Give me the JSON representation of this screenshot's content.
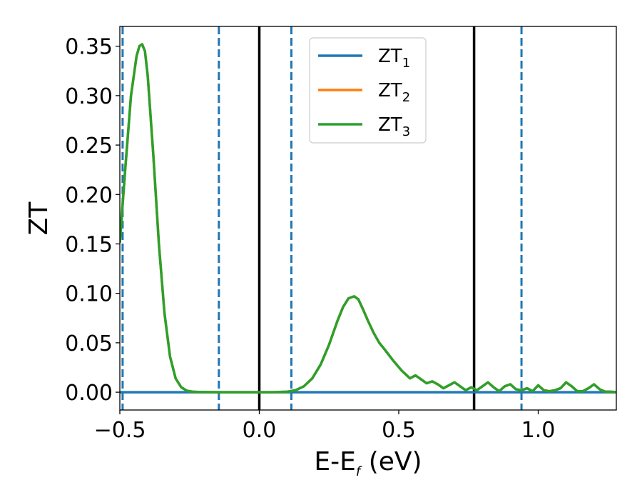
{
  "chart_data": {
    "type": "line",
    "xlabel": {
      "main": "E-E",
      "sub": "f",
      "unit": " (eV)"
    },
    "ylabel": "ZT",
    "xlim": [
      -0.5,
      1.28
    ],
    "ylim": [
      -0.018,
      0.37
    ],
    "xticks": [
      -0.5,
      0.0,
      0.5,
      1.0
    ],
    "xtick_labels": [
      "−0.5",
      "0.0",
      "0.5",
      "1.0"
    ],
    "yticks": [
      0.0,
      0.05,
      0.1,
      0.15,
      0.2,
      0.25,
      0.3,
      0.35
    ],
    "ytick_labels": [
      "0.00",
      "0.05",
      "0.10",
      "0.15",
      "0.20",
      "0.25",
      "0.30",
      "0.35"
    ],
    "legend": {
      "placement": "upper-center"
    },
    "series": [
      {
        "name": "ZT",
        "name_sub": "1",
        "color": "#1f77b4",
        "x": [
          -0.5,
          1.28
        ],
        "y": [
          0.0,
          0.0
        ]
      },
      {
        "name": "ZT",
        "name_sub": "2",
        "color": "#ff7f0e",
        "x": [
          -0.5,
          -0.48,
          -0.46,
          -0.44,
          -0.43,
          -0.42,
          -0.41,
          -0.4,
          -0.38,
          -0.36,
          -0.34,
          -0.32,
          -0.3,
          -0.28,
          -0.26,
          -0.24,
          -0.22,
          -0.18,
          -0.14,
          -0.1,
          -0.05,
          0.0,
          0.05,
          0.1,
          0.13,
          0.16,
          0.19,
          0.22,
          0.25,
          0.28,
          0.3,
          0.32,
          0.34,
          0.355,
          0.37,
          0.39,
          0.41,
          0.43,
          0.45,
          0.48,
          0.51,
          0.54,
          0.56,
          0.58,
          0.6,
          0.62,
          0.64,
          0.66,
          0.68,
          0.7,
          0.72,
          0.74,
          0.76,
          0.78,
          0.8,
          0.82,
          0.84,
          0.86,
          0.88,
          0.9,
          0.92,
          0.94,
          0.96,
          0.98,
          1.0,
          1.02,
          1.04,
          1.06,
          1.08,
          1.1,
          1.12,
          1.14,
          1.16,
          1.18,
          1.2,
          1.22,
          1.24,
          1.26,
          1.28
        ],
        "y": [
          0.152,
          0.228,
          0.3,
          0.34,
          0.35,
          0.352,
          0.345,
          0.32,
          0.24,
          0.15,
          0.08,
          0.036,
          0.014,
          0.005,
          0.0015,
          0.0005,
          0.0002,
          0.0001,
          0.0,
          0.0,
          0.0,
          0.0,
          0.0,
          0.0005,
          0.002,
          0.006,
          0.014,
          0.028,
          0.048,
          0.072,
          0.086,
          0.095,
          0.097,
          0.094,
          0.085,
          0.072,
          0.06,
          0.05,
          0.043,
          0.032,
          0.022,
          0.014,
          0.017,
          0.013,
          0.009,
          0.011,
          0.008,
          0.004,
          0.007,
          0.01,
          0.006,
          0.002,
          0.005,
          0.002,
          0.006,
          0.01,
          0.005,
          0.001,
          0.006,
          0.008,
          0.003,
          0.002,
          0.004,
          0.001,
          0.007,
          0.002,
          0.001,
          0.002,
          0.004,
          0.01,
          0.006,
          0.001,
          0.001,
          0.004,
          0.008,
          0.003,
          0.0005,
          0.0005,
          0.0
        ]
      },
      {
        "name": "ZT",
        "name_sub": "3",
        "color": "#2ca02c",
        "x": [
          -0.5,
          -0.48,
          -0.46,
          -0.44,
          -0.43,
          -0.42,
          -0.41,
          -0.4,
          -0.38,
          -0.36,
          -0.34,
          -0.32,
          -0.3,
          -0.28,
          -0.26,
          -0.24,
          -0.22,
          -0.18,
          -0.14,
          -0.1,
          -0.05,
          0.0,
          0.05,
          0.1,
          0.13,
          0.16,
          0.19,
          0.22,
          0.25,
          0.28,
          0.3,
          0.32,
          0.34,
          0.355,
          0.37,
          0.39,
          0.41,
          0.43,
          0.45,
          0.48,
          0.51,
          0.54,
          0.56,
          0.58,
          0.6,
          0.62,
          0.64,
          0.66,
          0.68,
          0.7,
          0.72,
          0.74,
          0.76,
          0.78,
          0.8,
          0.82,
          0.84,
          0.86,
          0.88,
          0.9,
          0.92,
          0.94,
          0.96,
          0.98,
          1.0,
          1.02,
          1.04,
          1.06,
          1.08,
          1.1,
          1.12,
          1.14,
          1.16,
          1.18,
          1.2,
          1.22,
          1.24,
          1.26,
          1.28
        ],
        "y": [
          0.152,
          0.228,
          0.3,
          0.34,
          0.35,
          0.352,
          0.345,
          0.32,
          0.24,
          0.15,
          0.08,
          0.036,
          0.014,
          0.005,
          0.0015,
          0.0005,
          0.0002,
          0.0001,
          0.0,
          0.0,
          0.0,
          0.0,
          0.0,
          0.0005,
          0.002,
          0.006,
          0.014,
          0.028,
          0.048,
          0.072,
          0.086,
          0.095,
          0.097,
          0.094,
          0.085,
          0.072,
          0.06,
          0.05,
          0.043,
          0.032,
          0.022,
          0.014,
          0.017,
          0.013,
          0.009,
          0.011,
          0.008,
          0.004,
          0.007,
          0.01,
          0.006,
          0.002,
          0.005,
          0.002,
          0.006,
          0.01,
          0.005,
          0.001,
          0.006,
          0.008,
          0.003,
          0.002,
          0.004,
          0.001,
          0.007,
          0.002,
          0.001,
          0.002,
          0.004,
          0.01,
          0.006,
          0.001,
          0.001,
          0.004,
          0.008,
          0.003,
          0.0005,
          0.0005,
          0.0
        ]
      }
    ],
    "vlines": [
      {
        "x": -0.49,
        "style": "dashed",
        "color": "#1f77b4"
      },
      {
        "x": -0.145,
        "style": "dashed",
        "color": "#1f77b4"
      },
      {
        "x": 0.0,
        "style": "solid",
        "color": "#000000"
      },
      {
        "x": 0.115,
        "style": "dashed",
        "color": "#1f77b4"
      },
      {
        "x": 0.77,
        "style": "solid",
        "color": "#000000"
      },
      {
        "x": 0.94,
        "style": "dashed",
        "color": "#1f77b4"
      }
    ]
  }
}
